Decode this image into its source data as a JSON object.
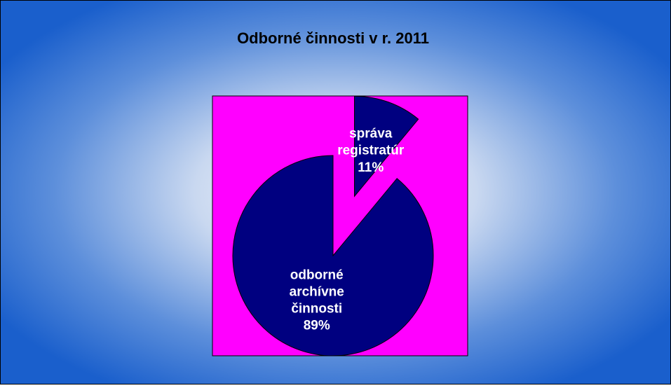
{
  "chart_data": {
    "type": "pie",
    "title": "Odborné činnosti v r. 2011",
    "categories": [
      "správa registratúr",
      "odborné archívne činnosti"
    ],
    "values": [
      11,
      89
    ],
    "value_labels": [
      "11%",
      "89%"
    ],
    "colors": [
      "#000080",
      "#000080"
    ],
    "explode": [
      true,
      false
    ],
    "plot_background": "#ff00ff"
  }
}
